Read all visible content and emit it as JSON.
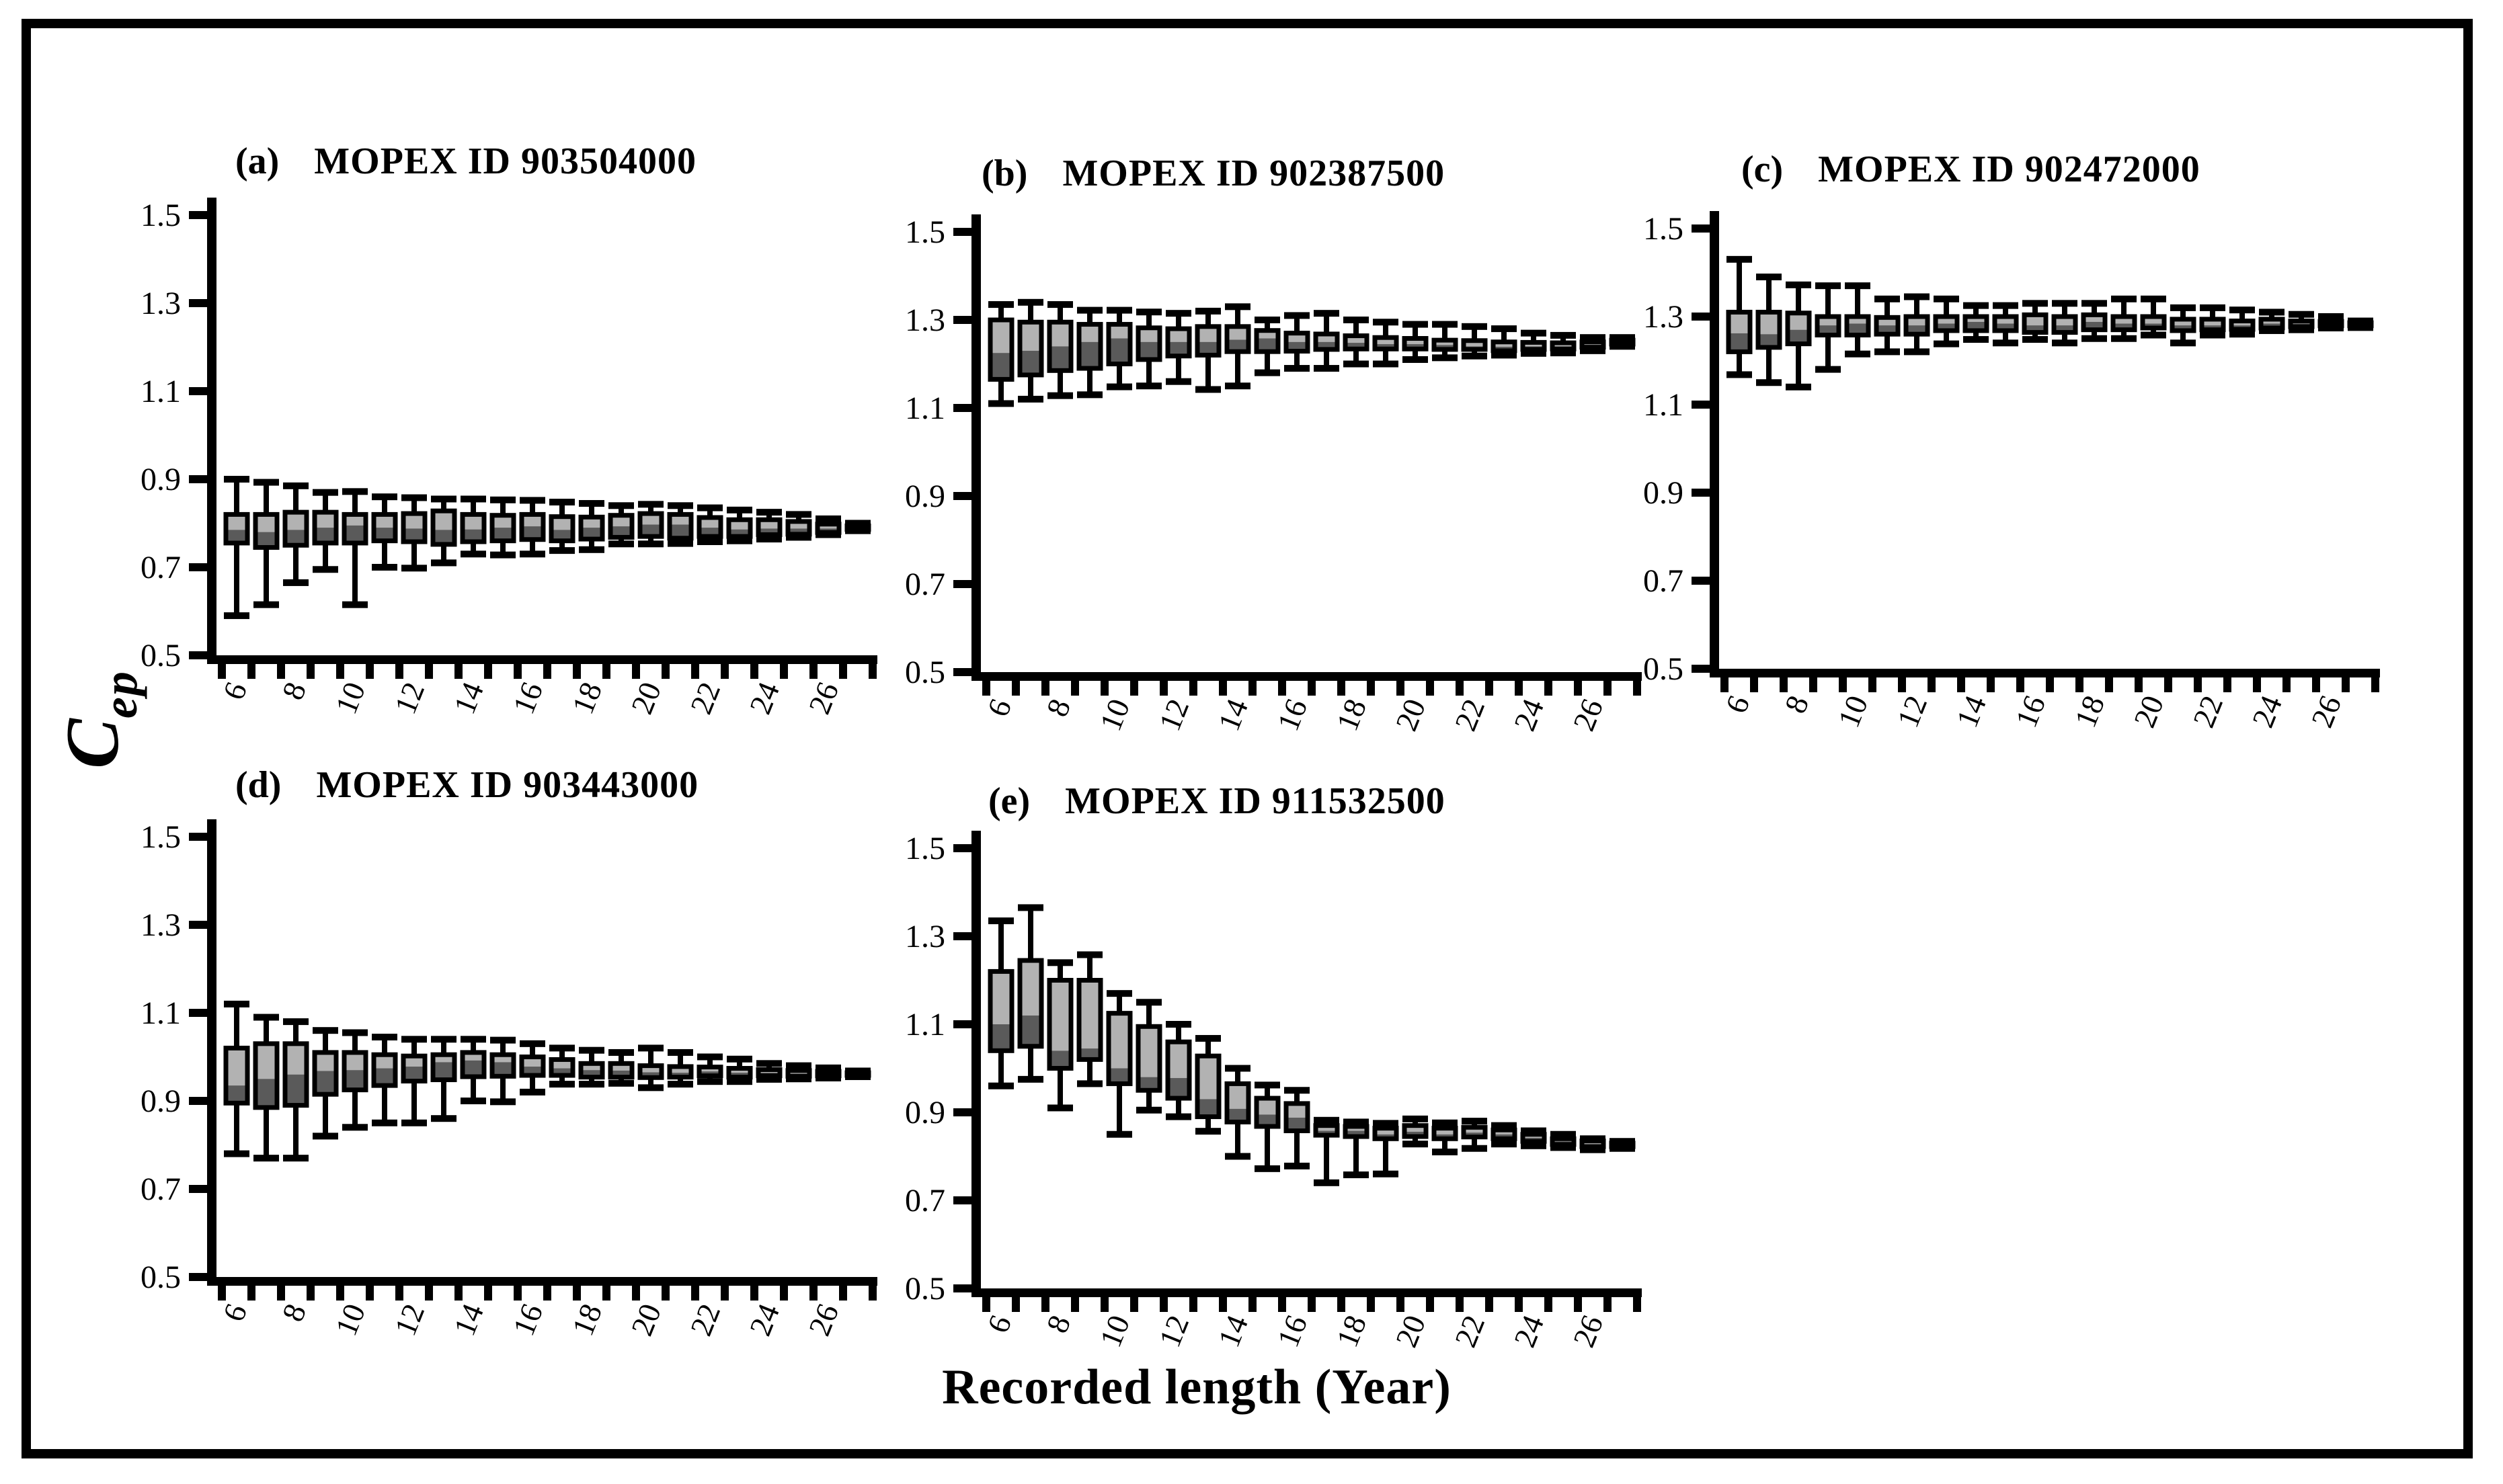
{
  "figure": {
    "y_axis_label": {
      "main": "C",
      "subscript": "ep"
    },
    "x_axis_label": "Recorded length (Year)",
    "colors": {
      "line": "#000000",
      "box_upper_fill": "#b2b2b2",
      "box_lower_fill": "#5a5a5a",
      "background": "#ffffff"
    }
  },
  "chart_data": [
    {
      "type": "box",
      "panel_label": "(a)",
      "title": "MOPEX ID 903504000",
      "xlabel": "Recorded length (Year)",
      "ylabel": "Cep",
      "ylim": [
        0.5,
        1.5
      ],
      "yticks": [
        0.5,
        0.7,
        0.9,
        1.1,
        1.3,
        1.5
      ],
      "xticks_shown": [
        6,
        8,
        10,
        12,
        14,
        16,
        18,
        20,
        22,
        24,
        26
      ],
      "years": [
        6,
        7,
        8,
        9,
        10,
        11,
        12,
        13,
        14,
        15,
        16,
        17,
        18,
        19,
        20,
        21,
        22,
        23,
        24,
        25,
        26,
        27
      ],
      "boxes_format": [
        "min",
        "q1",
        "median",
        "q3",
        "max"
      ],
      "boxes": [
        [
          0.59,
          0.755,
          0.785,
          0.82,
          0.9
        ],
        [
          0.615,
          0.745,
          0.78,
          0.82,
          0.893
        ],
        [
          0.665,
          0.75,
          0.785,
          0.825,
          0.885
        ],
        [
          0.695,
          0.755,
          0.79,
          0.825,
          0.87
        ],
        [
          0.615,
          0.755,
          0.795,
          0.82,
          0.872
        ],
        [
          0.7,
          0.76,
          0.79,
          0.82,
          0.86
        ],
        [
          0.698,
          0.758,
          0.788,
          0.822,
          0.858
        ],
        [
          0.71,
          0.752,
          0.785,
          0.828,
          0.855
        ],
        [
          0.73,
          0.758,
          0.786,
          0.82,
          0.855
        ],
        [
          0.728,
          0.76,
          0.79,
          0.818,
          0.853
        ],
        [
          0.73,
          0.763,
          0.793,
          0.82,
          0.852
        ],
        [
          0.738,
          0.76,
          0.785,
          0.815,
          0.848
        ],
        [
          0.74,
          0.764,
          0.79,
          0.814,
          0.845
        ],
        [
          0.753,
          0.768,
          0.793,
          0.818,
          0.84
        ],
        [
          0.753,
          0.77,
          0.797,
          0.822,
          0.843
        ],
        [
          0.754,
          0.766,
          0.797,
          0.82,
          0.84
        ],
        [
          0.758,
          0.77,
          0.79,
          0.813,
          0.835
        ],
        [
          0.76,
          0.77,
          0.786,
          0.808,
          0.83
        ],
        [
          0.764,
          0.774,
          0.788,
          0.808,
          0.825
        ],
        [
          0.768,
          0.775,
          0.788,
          0.804,
          0.82
        ],
        [
          0.774,
          0.779,
          0.788,
          0.798,
          0.81
        ],
        [
          0.783,
          0.786,
          0.79,
          0.794,
          0.8
        ]
      ]
    },
    {
      "type": "box",
      "panel_label": "(b)",
      "title": "MOPEX ID 902387500",
      "xlabel": "Recorded length (Year)",
      "ylabel": "Cep",
      "ylim": [
        0.5,
        1.5
      ],
      "yticks": [
        0.5,
        0.7,
        0.9,
        1.1,
        1.3,
        1.5
      ],
      "xticks_shown": [
        6,
        8,
        10,
        12,
        14,
        16,
        18,
        20,
        22,
        24,
        26
      ],
      "years": [
        6,
        7,
        8,
        9,
        10,
        11,
        12,
        13,
        14,
        15,
        16,
        17,
        18,
        19,
        20,
        21,
        22,
        23,
        24,
        25,
        26,
        27
      ],
      "boxes_format": [
        "min",
        "q1",
        "median",
        "q3",
        "max"
      ],
      "boxes": [
        [
          1.11,
          1.165,
          1.225,
          1.3,
          1.335
        ],
        [
          1.12,
          1.175,
          1.23,
          1.295,
          1.34
        ],
        [
          1.128,
          1.185,
          1.24,
          1.295,
          1.335
        ],
        [
          1.13,
          1.19,
          1.25,
          1.29,
          1.322
        ],
        [
          1.148,
          1.2,
          1.258,
          1.29,
          1.322
        ],
        [
          1.15,
          1.21,
          1.25,
          1.282,
          1.318
        ],
        [
          1.16,
          1.218,
          1.25,
          1.28,
          1.315
        ],
        [
          1.142,
          1.22,
          1.25,
          1.285,
          1.32
        ],
        [
          1.15,
          1.228,
          1.255,
          1.285,
          1.33
        ],
        [
          1.18,
          1.228,
          1.258,
          1.276,
          1.3
        ],
        [
          1.19,
          1.229,
          1.25,
          1.27,
          1.31
        ],
        [
          1.19,
          1.233,
          1.25,
          1.268,
          1.315
        ],
        [
          1.2,
          1.234,
          1.248,
          1.264,
          1.3
        ],
        [
          1.2,
          1.234,
          1.245,
          1.26,
          1.295
        ],
        [
          1.21,
          1.234,
          1.245,
          1.258,
          1.29
        ],
        [
          1.214,
          1.233,
          1.243,
          1.254,
          1.29
        ],
        [
          1.218,
          1.233,
          1.24,
          1.253,
          1.285
        ],
        [
          1.22,
          1.23,
          1.239,
          1.25,
          1.28
        ],
        [
          1.224,
          1.233,
          1.24,
          1.249,
          1.27
        ],
        [
          1.225,
          1.234,
          1.24,
          1.248,
          1.265
        ],
        [
          1.23,
          1.238,
          1.243,
          1.25,
          1.26
        ],
        [
          1.24,
          1.245,
          1.249,
          1.254,
          1.26
        ]
      ]
    },
    {
      "type": "box",
      "panel_label": "(c)",
      "title": "MOPEX ID 902472000",
      "xlabel": "Recorded length (Year)",
      "ylabel": "Cep",
      "ylim": [
        0.5,
        1.5
      ],
      "yticks": [
        0.5,
        0.7,
        0.9,
        1.1,
        1.3,
        1.5
      ],
      "xticks_shown": [
        6,
        8,
        10,
        12,
        14,
        16,
        18,
        20,
        22,
        24,
        26
      ],
      "years": [
        6,
        7,
        8,
        9,
        10,
        11,
        12,
        13,
        14,
        15,
        16,
        17,
        18,
        19,
        20,
        21,
        22,
        23,
        24,
        25,
        26,
        27
      ],
      "boxes_format": [
        "min",
        "q1",
        "median",
        "q3",
        "max"
      ],
      "boxes": [
        [
          1.168,
          1.22,
          1.262,
          1.31,
          1.43
        ],
        [
          1.15,
          1.23,
          1.26,
          1.31,
          1.39
        ],
        [
          1.14,
          1.238,
          1.27,
          1.308,
          1.372
        ],
        [
          1.18,
          1.258,
          1.28,
          1.3,
          1.37
        ],
        [
          1.215,
          1.258,
          1.284,
          1.3,
          1.37
        ],
        [
          1.22,
          1.26,
          1.28,
          1.298,
          1.34
        ],
        [
          1.22,
          1.26,
          1.28,
          1.3,
          1.345
        ],
        [
          1.238,
          1.268,
          1.284,
          1.3,
          1.34
        ],
        [
          1.248,
          1.268,
          1.288,
          1.3,
          1.325
        ],
        [
          1.24,
          1.268,
          1.284,
          1.3,
          1.325
        ],
        [
          1.248,
          1.264,
          1.28,
          1.304,
          1.33
        ],
        [
          1.24,
          1.264,
          1.28,
          1.3,
          1.33
        ],
        [
          1.25,
          1.27,
          1.288,
          1.304,
          1.33
        ],
        [
          1.25,
          1.27,
          1.284,
          1.3,
          1.34
        ],
        [
          1.258,
          1.274,
          1.284,
          1.3,
          1.34
        ],
        [
          1.24,
          1.268,
          1.28,
          1.294,
          1.32
        ],
        [
          1.258,
          1.27,
          1.28,
          1.294,
          1.32
        ],
        [
          1.26,
          1.271,
          1.28,
          1.29,
          1.315
        ],
        [
          1.268,
          1.274,
          1.284,
          1.294,
          1.31
        ],
        [
          1.27,
          1.277,
          1.284,
          1.29,
          1.305
        ],
        [
          1.274,
          1.279,
          1.284,
          1.289,
          1.3
        ],
        [
          1.275,
          1.279,
          1.282,
          1.286,
          1.29
        ]
      ]
    },
    {
      "type": "box",
      "panel_label": "(d)",
      "title": "MOPEX ID 903443000",
      "xlabel": "Recorded length (Year)",
      "ylabel": "Cep",
      "ylim": [
        0.5,
        1.5
      ],
      "yticks": [
        0.5,
        0.7,
        0.9,
        1.1,
        1.3,
        1.5
      ],
      "xticks_shown": [
        6,
        8,
        10,
        12,
        14,
        16,
        18,
        20,
        22,
        24,
        26
      ],
      "years": [
        6,
        7,
        8,
        9,
        10,
        11,
        12,
        13,
        14,
        15,
        16,
        17,
        18,
        19,
        20,
        21,
        22,
        23,
        24,
        25,
        26,
        27
      ],
      "boxes_format": [
        "min",
        "q1",
        "median",
        "q3",
        "max"
      ],
      "boxes": [
        [
          0.78,
          0.895,
          0.935,
          1.02,
          1.12
        ],
        [
          0.77,
          0.885,
          0.95,
          1.03,
          1.09
        ],
        [
          0.77,
          0.89,
          0.96,
          1.03,
          1.08
        ],
        [
          0.82,
          0.915,
          0.968,
          1.01,
          1.06
        ],
        [
          0.84,
          0.925,
          0.97,
          1.01,
          1.055
        ],
        [
          0.85,
          0.935,
          0.974,
          1.005,
          1.045
        ],
        [
          0.85,
          0.945,
          0.978,
          1.002,
          1.04
        ],
        [
          0.86,
          0.948,
          0.988,
          1.005,
          1.04
        ],
        [
          0.9,
          0.955,
          0.992,
          1.01,
          1.04
        ],
        [
          0.898,
          0.956,
          0.988,
          1.005,
          1.038
        ],
        [
          0.92,
          0.958,
          0.978,
          1.0,
          1.03
        ],
        [
          0.938,
          0.958,
          0.974,
          0.994,
          1.02
        ],
        [
          0.938,
          0.954,
          0.97,
          0.985,
          1.015
        ],
        [
          0.94,
          0.954,
          0.969,
          0.985,
          1.01
        ],
        [
          0.93,
          0.953,
          0.965,
          0.98,
          1.02
        ],
        [
          0.938,
          0.954,
          0.964,
          0.978,
          1.01
        ],
        [
          0.944,
          0.957,
          0.967,
          0.977,
          1.0
        ],
        [
          0.944,
          0.954,
          0.964,
          0.974,
          0.995
        ],
        [
          0.949,
          0.957,
          0.964,
          0.971,
          0.985
        ],
        [
          0.95,
          0.956,
          0.962,
          0.969,
          0.98
        ],
        [
          0.952,
          0.957,
          0.962,
          0.967,
          0.975
        ],
        [
          0.955,
          0.958,
          0.961,
          0.964,
          0.968
        ]
      ]
    },
    {
      "type": "box",
      "panel_label": "(e)",
      "title": "MOPEX ID 911532500",
      "xlabel": "Recorded length (Year)",
      "ylabel": "Cep",
      "ylim": [
        0.5,
        1.5
      ],
      "yticks": [
        0.5,
        0.7,
        0.9,
        1.1,
        1.3,
        1.5
      ],
      "xticks_shown": [
        6,
        8,
        10,
        12,
        14,
        16,
        18,
        20,
        22,
        24,
        26
      ],
      "years": [
        6,
        7,
        8,
        9,
        10,
        11,
        12,
        13,
        14,
        15,
        16,
        17,
        18,
        19,
        20,
        21,
        22,
        23,
        24,
        25,
        26,
        27
      ],
      "boxes_format": [
        "min",
        "q1",
        "median",
        "q3",
        "max"
      ],
      "boxes": [
        [
          0.96,
          1.04,
          1.1,
          1.22,
          1.335
        ],
        [
          0.975,
          1.05,
          1.12,
          1.245,
          1.365
        ],
        [
          0.91,
          1.0,
          1.04,
          1.2,
          1.24
        ],
        [
          0.965,
          1.02,
          1.045,
          1.2,
          1.258
        ],
        [
          0.85,
          0.965,
          1.0,
          1.125,
          1.17
        ],
        [
          0.905,
          0.95,
          0.98,
          1.095,
          1.15
        ],
        [
          0.89,
          0.932,
          0.978,
          1.06,
          1.1
        ],
        [
          0.857,
          0.89,
          0.93,
          1.028,
          1.068
        ],
        [
          0.8,
          0.878,
          0.908,
          0.965,
          1.0
        ],
        [
          0.772,
          0.868,
          0.895,
          0.932,
          0.962
        ],
        [
          0.778,
          0.858,
          0.888,
          0.92,
          0.95
        ],
        [
          0.74,
          0.848,
          0.858,
          0.87,
          0.882
        ],
        [
          0.758,
          0.845,
          0.858,
          0.868,
          0.878
        ],
        [
          0.76,
          0.84,
          0.85,
          0.864,
          0.875
        ],
        [
          0.828,
          0.845,
          0.856,
          0.87,
          0.885
        ],
        [
          0.81,
          0.84,
          0.85,
          0.864,
          0.876
        ],
        [
          0.818,
          0.844,
          0.854,
          0.866,
          0.88
        ],
        [
          0.828,
          0.84,
          0.85,
          0.86,
          0.87
        ],
        [
          0.824,
          0.834,
          0.842,
          0.85,
          0.858
        ],
        [
          0.82,
          0.827,
          0.834,
          0.84,
          0.85
        ],
        [
          0.815,
          0.822,
          0.828,
          0.835,
          0.84
        ],
        [
          0.818,
          0.822,
          0.826,
          0.83,
          0.834
        ]
      ]
    }
  ]
}
